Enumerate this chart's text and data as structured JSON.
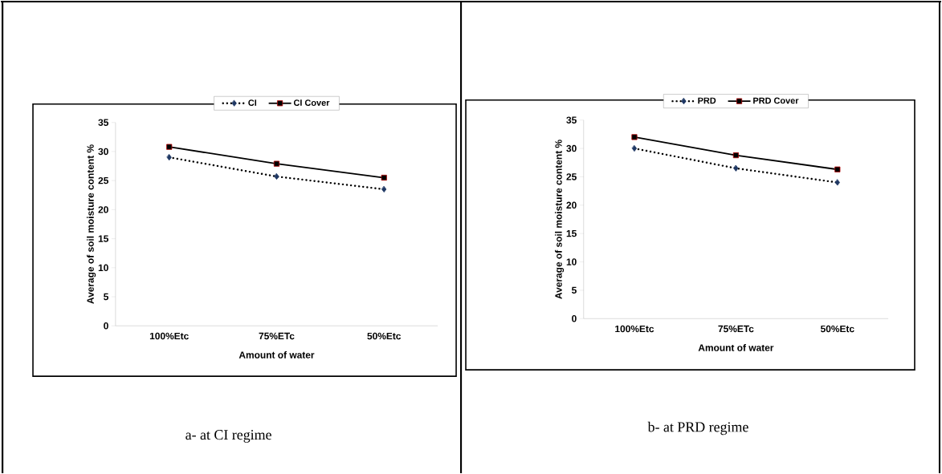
{
  "chart_data": [
    {
      "type": "line",
      "xlabel": "Amount of water",
      "ylabel": "Average of soil moisture content %",
      "categories": [
        "100%Etc",
        "75%ETc",
        "50%Etc"
      ],
      "series": [
        {
          "name": "CI",
          "color": "#1f3864",
          "values": [
            29,
            25.7,
            23.5
          ],
          "marker": "diamond",
          "line_style": "dotted"
        },
        {
          "name": "CI Cover",
          "color": "#000000",
          "values": [
            30.8,
            27.9,
            25.5
          ],
          "marker": "square",
          "line_style": "solid"
        }
      ],
      "ylim": [
        0,
        35
      ],
      "yticks": [
        0,
        5,
        10,
        15,
        20,
        25,
        30,
        35
      ],
      "grid": false,
      "legend": "top",
      "annotations": [
        "a-  at CI regime"
      ]
    },
    {
      "type": "line",
      "xlabel": "Amount of water",
      "ylabel": "Average of soil moisture content %",
      "categories": [
        "100%Etc",
        "75%ETc",
        "50%Etc"
      ],
      "series": [
        {
          "name": "PRD",
          "color": "#1f3864",
          "values": [
            30,
            26.5,
            24
          ],
          "marker": "diamond",
          "line_style": "dotted"
        },
        {
          "name": "PRD Cover",
          "color": "#000000",
          "values": [
            32,
            28.8,
            26.3
          ],
          "marker": "square",
          "line_style": "solid"
        }
      ],
      "ylim": [
        0,
        35
      ],
      "yticks": [
        0,
        5,
        10,
        15,
        20,
        25,
        30,
        35
      ],
      "grid": false,
      "legend": "top",
      "annotations": [
        "b-  at PRD regime"
      ]
    }
  ]
}
